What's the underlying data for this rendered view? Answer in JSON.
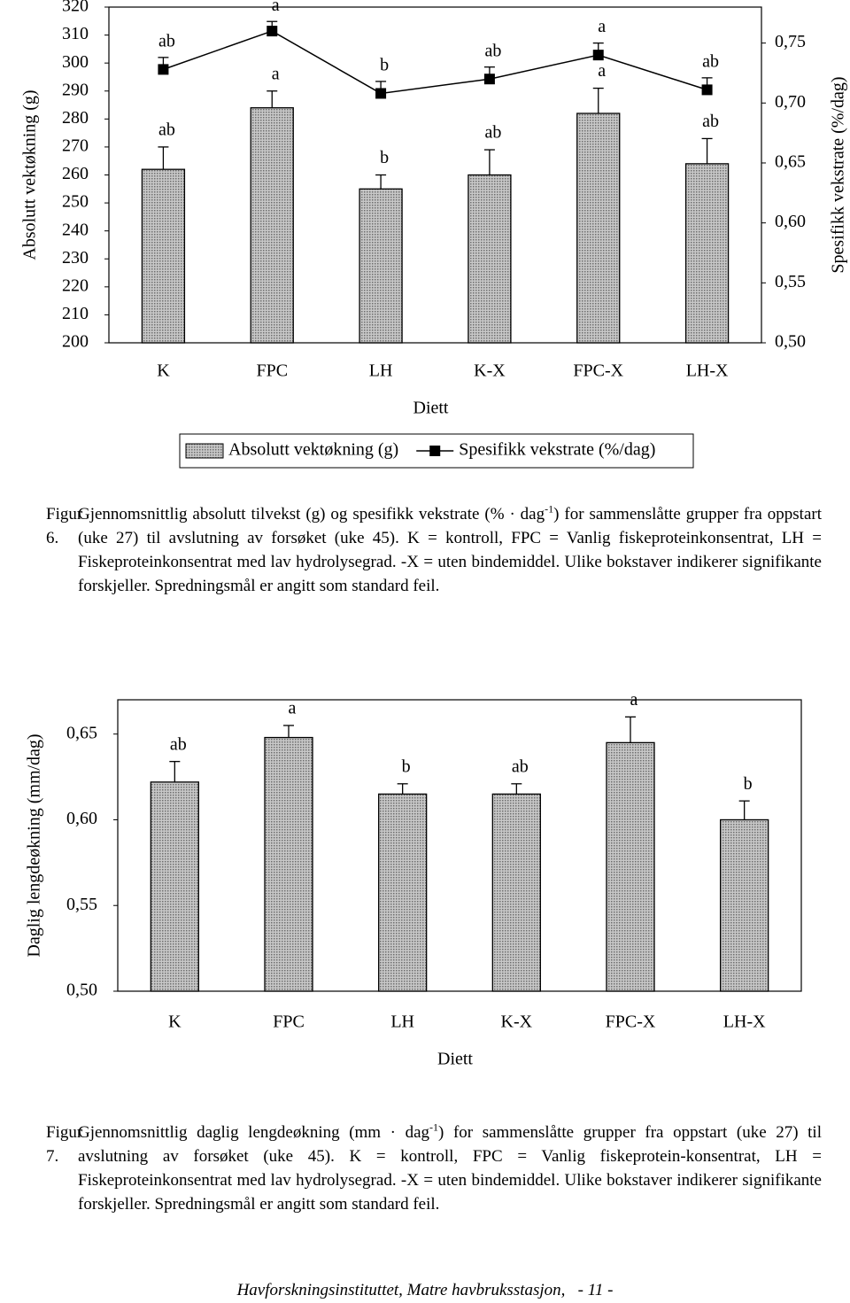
{
  "chart_data": [
    {
      "type": "bar",
      "categories": [
        "K",
        "FPC",
        "LH",
        "K-X",
        "FPC-X",
        "LH-X"
      ],
      "x_label": "Diett",
      "y_label": "Absolutt vektøkning (g)",
      "y2_label": "Spesifikk vekstrate (%/dag)",
      "ylim": [
        200,
        320
      ],
      "yticks": [
        200,
        210,
        220,
        230,
        240,
        250,
        260,
        270,
        280,
        290,
        300,
        310,
        320
      ],
      "y2lim": [
        0.5,
        0.78
      ],
      "y2ticks": [
        {
          "value": 0.5,
          "label": "0,50"
        },
        {
          "value": 0.55,
          "label": "0,55"
        },
        {
          "value": 0.6,
          "label": "0,60"
        },
        {
          "value": 0.65,
          "label": "0,65"
        },
        {
          "value": 0.7,
          "label": "0,70"
        },
        {
          "value": 0.75,
          "label": "0,75"
        }
      ],
      "legend": "bottom",
      "series": [
        {
          "name": "Absolutt vektøkning (g)",
          "type": "bar",
          "color": "#a6a6a6",
          "values": [
            262,
            284,
            255,
            260,
            282,
            264
          ],
          "errors": [
            8,
            6,
            5,
            9,
            9,
            9
          ],
          "letters": [
            "ab",
            "a",
            "b",
            "ab",
            "a",
            "ab"
          ]
        },
        {
          "name": "Spesifikk vekstrate (%/dag)",
          "type": "line",
          "axis": "y2",
          "color": "#000000",
          "values": [
            0.728,
            0.76,
            0.708,
            0.72,
            0.74,
            0.711
          ],
          "errors": [
            0.01,
            0.008,
            0.01,
            0.01,
            0.01,
            0.01
          ],
          "letters": [
            "ab",
            "a",
            "b",
            "ab",
            "a",
            "ab"
          ]
        }
      ]
    },
    {
      "type": "bar",
      "categories": [
        "K",
        "FPC",
        "LH",
        "K-X",
        "FPC-X",
        "LH-X"
      ],
      "x_label": "Diett",
      "y_label": "Daglig lengdeøkning (mm/dag)",
      "ylim": [
        0.5,
        0.67
      ],
      "yticks": [
        {
          "value": 0.5,
          "label": "0,50"
        },
        {
          "value": 0.55,
          "label": "0,55"
        },
        {
          "value": 0.6,
          "label": "0,60"
        },
        {
          "value": 0.65,
          "label": "0,65"
        }
      ],
      "color": "#a6a6a6",
      "values": [
        0.622,
        0.648,
        0.615,
        0.615,
        0.645,
        0.6
      ],
      "errors": [
        0.012,
        0.007,
        0.006,
        0.006,
        0.015,
        0.011
      ],
      "letters": [
        "ab",
        "a",
        "b",
        "ab",
        "a",
        "b"
      ]
    }
  ],
  "captions": [
    {
      "label": "Figur 6.",
      "before": "Gjennomsnittlig absolutt tilvekst (g) og spesifikk vekstrate (% · dag",
      "sup": "-1",
      "after": ") for sammenslåtte grupper fra oppstart (uke 27) til avslutning av forsøket (uke 45). K = kontroll, FPC = Vanlig fiskeproteinkonsentrat, LH = Fiskeproteinkonsentrat med lav hydrolysegrad. -X = uten bindemiddel. Ulike bokstaver indikerer signifikante forskjeller. Spredningsmål er angitt som standard feil."
    },
    {
      "label": "Figur 7.",
      "before": "Gjennomsnittlig daglig lengdeøkning (mm · dag",
      "sup": "-1",
      "after": ") for sammenslåtte grupper fra oppstart (uke 27) til avslutning av forsøket (uke 45). K = kontroll, FPC = Vanlig fiskeprotein-konsentrat, LH = Fiskeproteinkonsentrat med lav hydrolysegrad. -X = uten bindemiddel. Ulike bokstaver indikerer signifikante forskjeller. Spredningsmål er angitt som standard feil."
    }
  ],
  "footer": {
    "text": "Havforskningsinstituttet, Matre havbruksstasjon,",
    "page": "- 11 -"
  }
}
